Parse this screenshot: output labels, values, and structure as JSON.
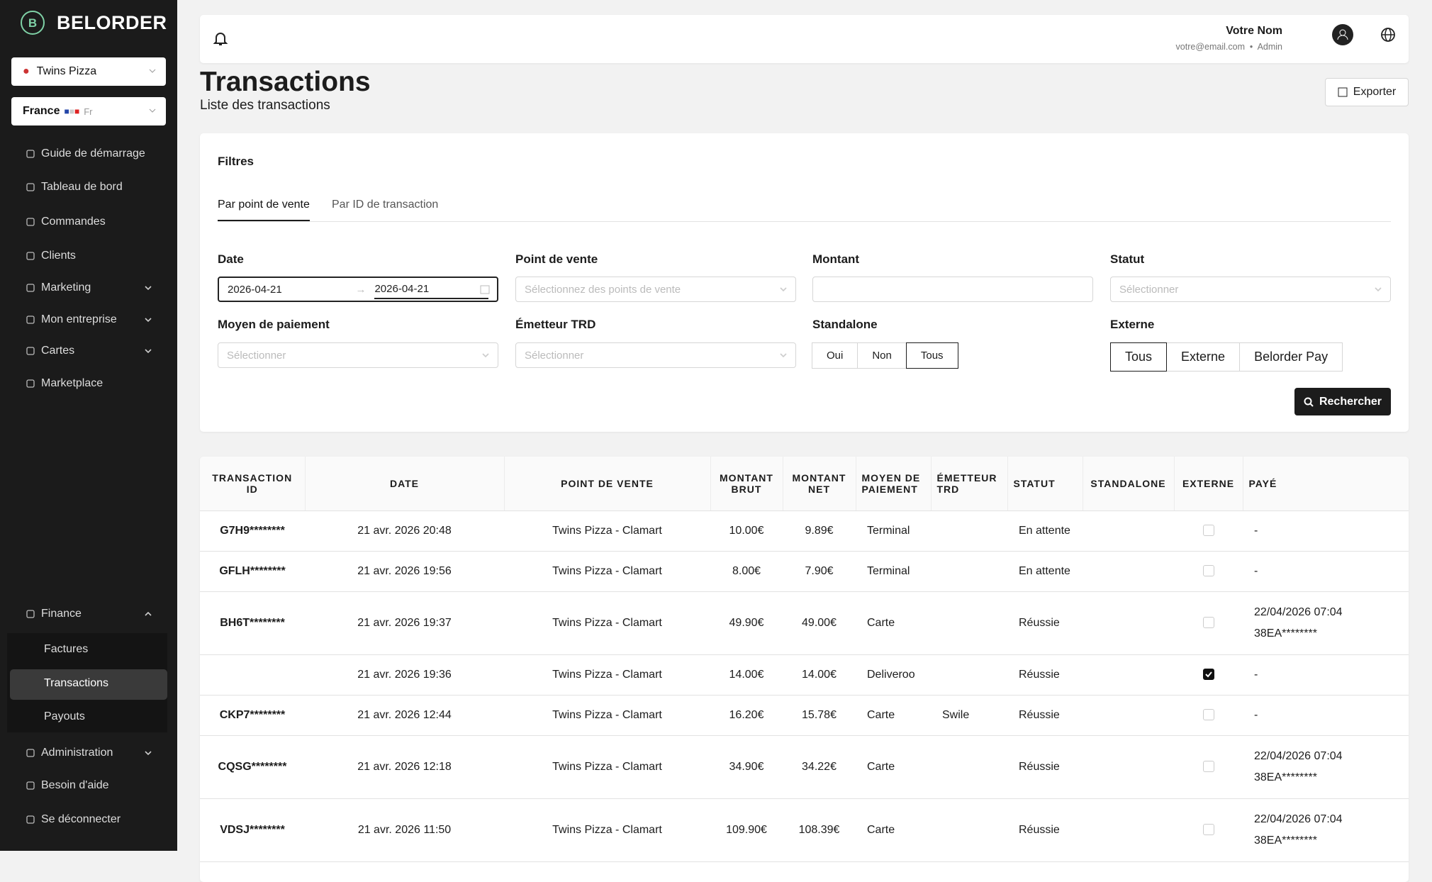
{
  "sidebar": {
    "brand": "BELORDER",
    "store": "Twins Pizza",
    "country": "France",
    "lang": "Fr",
    "nav": [
      {
        "label": "Guide de démarrage",
        "expandable": false
      },
      {
        "label": "Tableau de bord",
        "expandable": false
      },
      {
        "label": "Commandes",
        "expandable": false
      },
      {
        "label": "Clients",
        "expandable": false
      },
      {
        "label": "Marketing",
        "expandable": true
      },
      {
        "label": "Mon entreprise",
        "expandable": true
      },
      {
        "label": "Cartes",
        "expandable": true
      },
      {
        "label": "Marketplace",
        "expandable": false
      }
    ],
    "finance": "Finance",
    "finance_items": [
      "Factures",
      "Transactions",
      "Payouts"
    ],
    "finance_active": 1,
    "bottom": [
      {
        "label": "Administration",
        "expandable": true
      },
      {
        "label": "Besoin d'aide",
        "expandable": false
      },
      {
        "label": "Se déconnecter",
        "expandable": false
      }
    ]
  },
  "header": {
    "user_name": "Votre Nom",
    "email": "votre@email.com",
    "role": "Admin"
  },
  "page": {
    "title": "Transactions",
    "subtitle": "Liste des transactions",
    "export": "Exporter"
  },
  "filters": {
    "title": "Filtres",
    "tabs": [
      "Par point de vente",
      "Par ID de transaction"
    ],
    "active_tab": 0,
    "date": {
      "label": "Date",
      "start": "2026-04-21",
      "end": "2026-04-21"
    },
    "pos": {
      "label": "Point de vente",
      "placeholder": "Sélectionnez des points de vente"
    },
    "amount": {
      "label": "Montant"
    },
    "status": {
      "label": "Statut",
      "placeholder": "Sélectionner"
    },
    "payment": {
      "label": "Moyen de paiement",
      "placeholder": "Sélectionner"
    },
    "issuer": {
      "label": "Émetteur TRD",
      "placeholder": "Sélectionner"
    },
    "standalone": {
      "label": "Standalone",
      "options": [
        "Oui",
        "Non",
        "Tous"
      ],
      "selected": 2
    },
    "external": {
      "label": "Externe",
      "options": [
        "Tous",
        "Externe",
        "Belorder Pay"
      ],
      "selected": 0
    },
    "search": "Rechercher"
  },
  "table": {
    "columns": [
      "TRANSACTION ID",
      "DATE",
      "POINT DE VENTE",
      "MONTANT BRUT",
      "MONTANT NET",
      "MOYEN DE PAIEMENT",
      "ÉMETTEUR TRD",
      "STATUT",
      "STANDALONE",
      "EXTERNE",
      "PAYÉ"
    ],
    "rows": [
      {
        "id": "G7H9********",
        "date": "21 avr. 2026 20:48",
        "pos": "Twins Pizza - Clamart",
        "gross": "10.00€",
        "net": "9.89€",
        "method": "Terminal",
        "issuer": null,
        "status": "En attente",
        "standalone": null,
        "external": false,
        "paid": [
          "-"
        ]
      },
      {
        "id": "GFLH********",
        "date": "21 avr. 2026 19:56",
        "pos": "Twins Pizza - Clamart",
        "gross": "8.00€",
        "net": "7.90€",
        "method": "Terminal",
        "issuer": null,
        "status": "En attente",
        "standalone": null,
        "external": false,
        "paid": [
          "-"
        ]
      },
      {
        "id": "BH6T********",
        "date": "21 avr. 2026 19:37",
        "pos": "Twins Pizza - Clamart",
        "gross": "49.90€",
        "net": "49.00€",
        "method": "Carte",
        "issuer": null,
        "status": "Réussie",
        "standalone": null,
        "external": false,
        "paid": [
          "22/04/2026 07:04",
          "38EA********"
        ]
      },
      {
        "id": null,
        "date": "21 avr. 2026 19:36",
        "pos": "Twins Pizza - Clamart",
        "gross": "14.00€",
        "net": "14.00€",
        "method": "Deliveroo",
        "issuer": null,
        "status": "Réussie",
        "standalone": null,
        "external": true,
        "paid": [
          "-"
        ]
      },
      {
        "id": "CKP7********",
        "date": "21 avr. 2026 12:44",
        "pos": "Twins Pizza - Clamart",
        "gross": "16.20€",
        "net": "15.78€",
        "method": "Carte",
        "issuer": "Swile",
        "status": "Réussie",
        "standalone": null,
        "external": false,
        "paid": [
          "-"
        ]
      },
      {
        "id": "CQSG********",
        "date": "21 avr. 2026 12:18",
        "pos": "Twins Pizza - Clamart",
        "gross": "34.90€",
        "net": "34.22€",
        "method": "Carte",
        "issuer": null,
        "status": "Réussie",
        "standalone": null,
        "external": false,
        "paid": [
          "22/04/2026 07:04",
          "38EA********"
        ]
      },
      {
        "id": "VDSJ********",
        "date": "21 avr. 2026 11:50",
        "pos": "Twins Pizza - Clamart",
        "gross": "109.90€",
        "net": "108.39€",
        "method": "Carte",
        "issuer": null,
        "status": "Réussie",
        "standalone": null,
        "external": false,
        "paid": [
          "22/04/2026 07:04",
          "38EA********"
        ]
      }
    ]
  }
}
